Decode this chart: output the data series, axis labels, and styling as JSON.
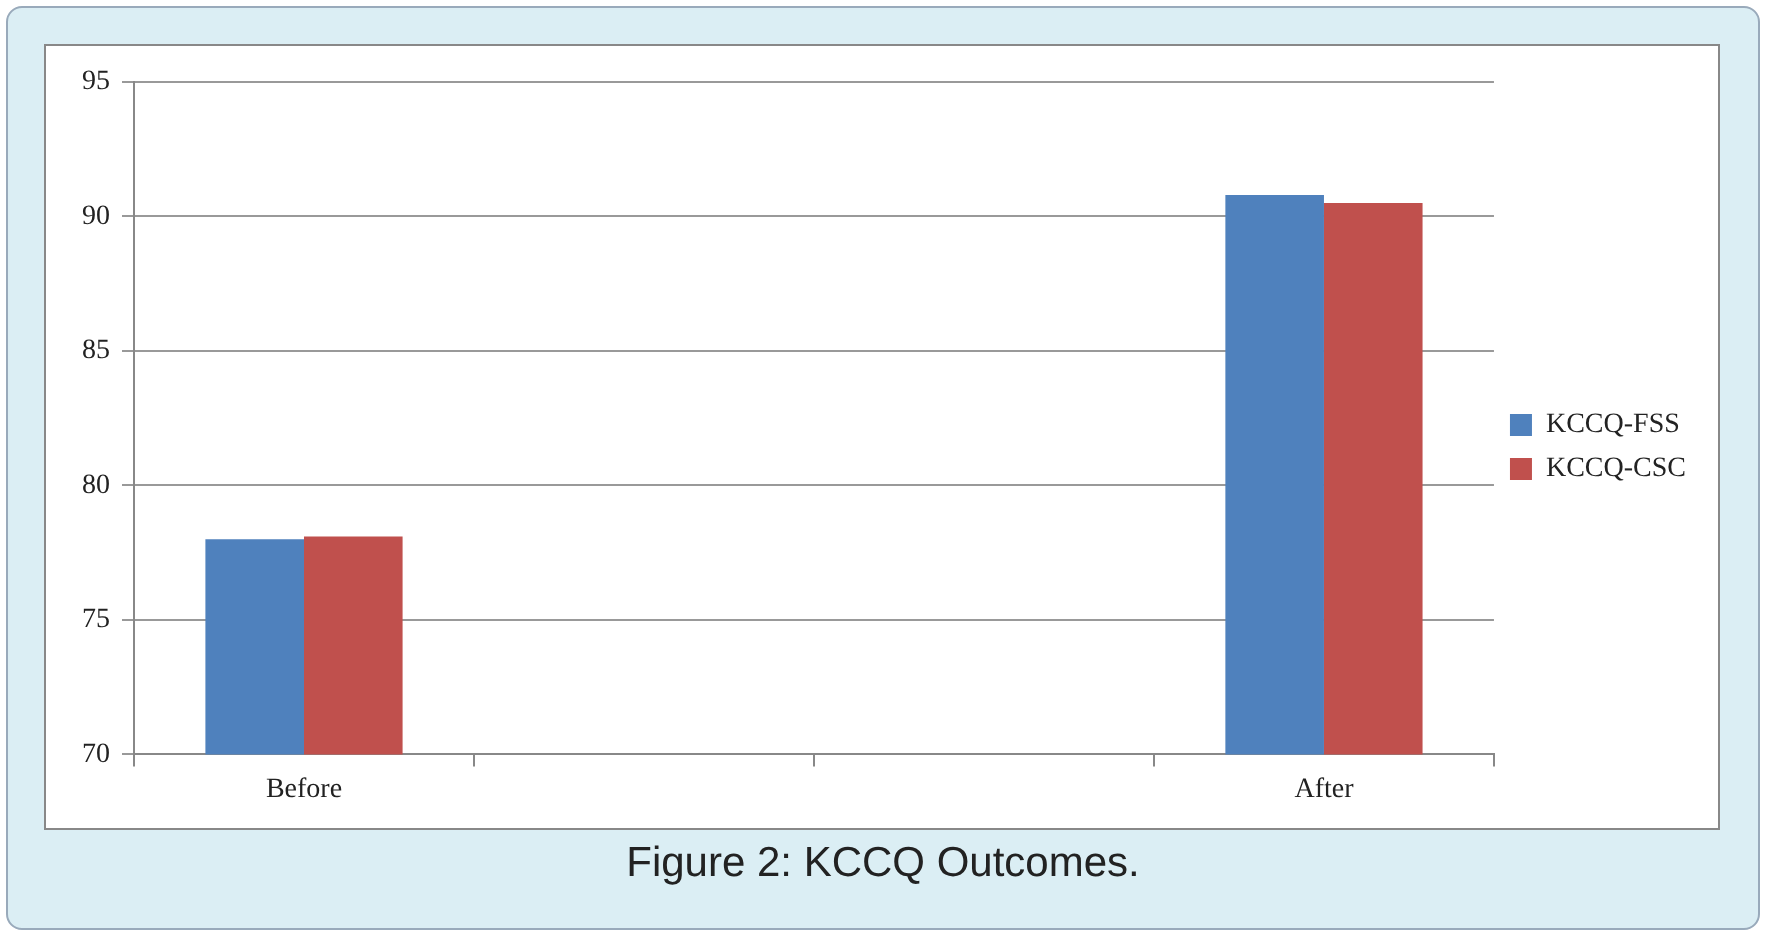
{
  "chart_data": {
    "type": "bar",
    "title": "Figure 2: KCCQ Outcomes.",
    "categories": [
      "Before",
      null,
      null,
      "After"
    ],
    "series": [
      {
        "name": "KCCQ-FSS",
        "color": "#4f81bd",
        "values": [
          78.0,
          null,
          null,
          90.8
        ]
      },
      {
        "name": "KCCQ-CSC",
        "color": "#c0504d",
        "values": [
          78.1,
          null,
          null,
          90.5
        ]
      }
    ],
    "ylim": [
      70,
      95
    ],
    "yticks": [
      70,
      75,
      80,
      85,
      90,
      95
    ],
    "grid": "y",
    "legend": "right"
  }
}
